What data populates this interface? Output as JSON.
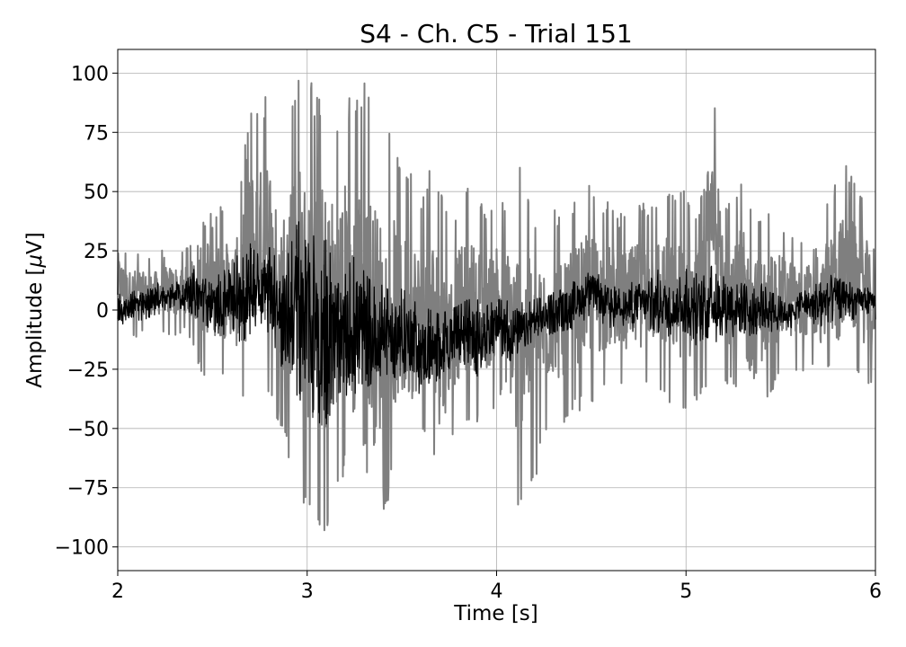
{
  "chart_data": {
    "type": "line",
    "title": "S4 - Ch. C5 - Trial 151",
    "xlabel": "Time [s]",
    "ylabel_prefix": "Amplitude [",
    "ylabel_mu": "μ",
    "ylabel_suffix": "V]",
    "xlim": [
      2,
      6
    ],
    "ylim": [
      -110,
      110
    ],
    "grid": true,
    "xticks": [
      2,
      3,
      4,
      5,
      6
    ],
    "xtick_labels": [
      "2",
      "3",
      "4",
      "5",
      "6"
    ],
    "yticks": [
      100,
      75,
      50,
      25,
      0,
      -25,
      -50,
      -75,
      -100
    ],
    "ytick_labels": [
      "100",
      "75",
      "50",
      "25",
      "0",
      "−25",
      "−50",
      "−75",
      "−100"
    ],
    "series": [
      {
        "role": "raw",
        "color": "#7f7f7f",
        "x": [
          2.0,
          2.05,
          2.1,
          2.15,
          2.2,
          2.25,
          2.3,
          2.35,
          2.4,
          2.45,
          2.5,
          2.55,
          2.6,
          2.65,
          2.7,
          2.75,
          2.8,
          2.85,
          2.9,
          2.95,
          3.0,
          3.05,
          3.1,
          3.15,
          3.2,
          3.25,
          3.3,
          3.35,
          3.4,
          3.45,
          3.5,
          3.55,
          3.6,
          3.65,
          3.7,
          3.75,
          3.8,
          3.85,
          3.9,
          3.95,
          4.0,
          4.05,
          4.1,
          4.15,
          4.2,
          4.25,
          4.3,
          4.35,
          4.4,
          4.45,
          4.5,
          4.55,
          4.6,
          4.65,
          4.7,
          4.75,
          4.8,
          4.85,
          4.9,
          4.95,
          5.0,
          5.05,
          5.1,
          5.15,
          5.2,
          5.25,
          5.3,
          5.35,
          5.4,
          5.45,
          5.5,
          5.55,
          5.6,
          5.65,
          5.7,
          5.75,
          5.8,
          5.85,
          5.9,
          5.95,
          6.0
        ],
        "y_max": [
          35,
          24,
          26,
          22,
          24,
          26,
          28,
          25,
          32,
          62,
          40,
          48,
          42,
          55,
          88,
          85,
          100,
          60,
          90,
          100,
          100,
          92,
          100,
          82,
          92,
          88,
          100,
          88,
          78,
          75,
          58,
          66,
          45,
          62,
          58,
          35,
          48,
          52,
          50,
          40,
          52,
          42,
          66,
          58,
          40,
          42,
          44,
          38,
          46,
          50,
          55,
          48,
          45,
          40,
          45,
          48,
          44,
          50,
          52,
          46,
          55,
          44,
          52,
          100,
          48,
          52,
          56,
          44,
          40,
          42,
          38,
          35,
          30,
          32,
          24,
          48,
          56,
          65,
          52,
          50,
          22
        ],
        "y_min": [
          -12,
          -10,
          -12,
          -8,
          -10,
          -10,
          -12,
          -8,
          -15,
          -32,
          -25,
          -30,
          -26,
          -42,
          -35,
          -30,
          -38,
          -48,
          -65,
          -60,
          -98,
          -90,
          -100,
          -75,
          -70,
          -90,
          -60,
          -100,
          -88,
          -75,
          -70,
          -68,
          -55,
          -60,
          -88,
          -56,
          -52,
          -48,
          -48,
          -45,
          -40,
          -35,
          -95,
          -72,
          -78,
          -55,
          -48,
          -52,
          -45,
          -42,
          -40,
          -38,
          -35,
          -30,
          -42,
          -35,
          -30,
          -32,
          -40,
          -38,
          -45,
          -40,
          -35,
          -38,
          -35,
          -32,
          -42,
          -53,
          -40,
          -35,
          -30,
          -25,
          -28,
          -22,
          -28,
          -25,
          -35,
          -30,
          -28,
          -34,
          -30
        ]
      },
      {
        "role": "filtered",
        "color": "#000000",
        "x": [
          2.0,
          2.05,
          2.1,
          2.15,
          2.2,
          2.25,
          2.3,
          2.35,
          2.4,
          2.45,
          2.5,
          2.55,
          2.6,
          2.65,
          2.7,
          2.75,
          2.8,
          2.85,
          2.9,
          2.95,
          3.0,
          3.05,
          3.1,
          3.15,
          3.2,
          3.25,
          3.3,
          3.35,
          3.4,
          3.45,
          3.5,
          3.55,
          3.6,
          3.65,
          3.7,
          3.75,
          3.8,
          3.85,
          3.9,
          3.95,
          4.0,
          4.05,
          4.1,
          4.15,
          4.2,
          4.25,
          4.3,
          4.35,
          4.4,
          4.45,
          4.5,
          4.55,
          4.6,
          4.65,
          4.7,
          4.75,
          4.8,
          4.85,
          4.9,
          4.95,
          5.0,
          5.05,
          5.1,
          5.15,
          5.2,
          5.25,
          5.3,
          5.35,
          5.4,
          5.45,
          5.5,
          5.55,
          5.6,
          5.65,
          5.7,
          5.75,
          5.8,
          5.85,
          5.9,
          5.95,
          6.0
        ],
        "y_max": [
          8,
          6,
          10,
          9,
          12,
          10,
          14,
          12,
          18,
          15,
          12,
          18,
          20,
          25,
          28,
          26,
          30,
          20,
          25,
          40,
          30,
          38,
          30,
          22,
          15,
          25,
          18,
          10,
          12,
          8,
          10,
          5,
          2,
          0,
          -2,
          0,
          2,
          5,
          5,
          2,
          5,
          4,
          6,
          2,
          5,
          5,
          8,
          10,
          12,
          15,
          18,
          15,
          12,
          10,
          12,
          15,
          12,
          18,
          15,
          12,
          18,
          15,
          20,
          22,
          15,
          18,
          12,
          10,
          12,
          8,
          6,
          5,
          8,
          10,
          12,
          15,
          14,
          12,
          12,
          10,
          8
        ],
        "y_min": [
          -8,
          -6,
          -5,
          -4,
          -2,
          0,
          2,
          0,
          -2,
          -5,
          -10,
          -12,
          -8,
          -15,
          -10,
          -5,
          -12,
          -20,
          -35,
          -40,
          -45,
          -48,
          -50,
          -38,
          -40,
          -42,
          -30,
          -35,
          -30,
          -28,
          -30,
          -25,
          -38,
          -35,
          -30,
          -28,
          -25,
          -25,
          -28,
          -20,
          -18,
          -22,
          -25,
          -20,
          -15,
          -12,
          -10,
          -10,
          -8,
          -5,
          -2,
          -5,
          -8,
          -5,
          -10,
          -8,
          -8,
          -10,
          -12,
          -10,
          -10,
          -15,
          -12,
          -15,
          -10,
          -12,
          -15,
          -10,
          -12,
          -10,
          -8,
          -8,
          -5,
          -5,
          -8,
          -5,
          -4,
          -2,
          -5,
          -2,
          0
        ]
      }
    ]
  }
}
